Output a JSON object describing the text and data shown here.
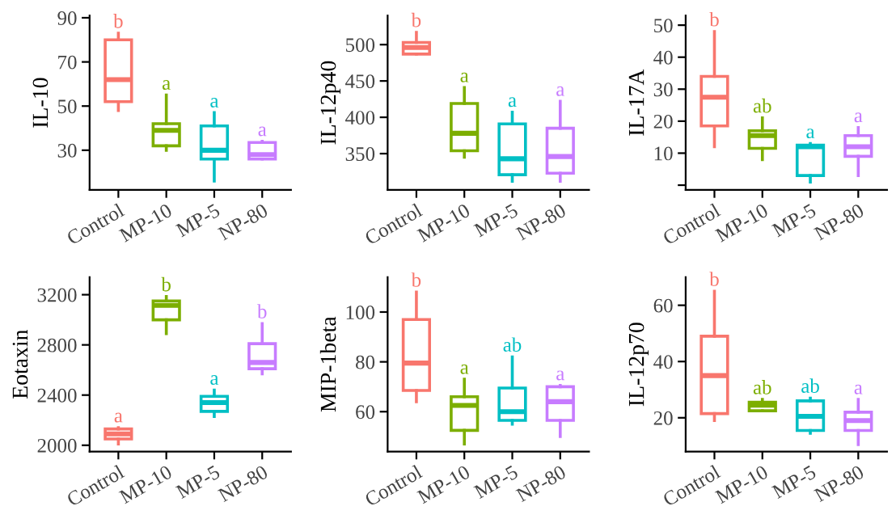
{
  "chart_data": [
    {
      "type": "box",
      "ylabel": "IL-10",
      "categories": [
        "Control",
        "MP-10",
        "MP-5",
        "NP-80"
      ],
      "colors": [
        "#f8766d",
        "#7cae00",
        "#00bfc4",
        "#c77cff"
      ],
      "ylim": [
        12,
        91
      ],
      "yticks": [
        30,
        50,
        70,
        90
      ],
      "grid": false,
      "legend": false,
      "boxes": [
        {
          "low": 48,
          "q1": 52,
          "median": 62,
          "q3": 80,
          "high": 83
        },
        {
          "low": 30,
          "q1": 32,
          "median": 39,
          "q3": 42,
          "high": 55
        },
        {
          "low": 16,
          "q1": 26,
          "median": 30,
          "q3": 41,
          "high": 47
        },
        {
          "low": 26,
          "q1": 26,
          "median": 28,
          "q3": 33.5,
          "high": 34
        }
      ],
      "annotations": [
        {
          "text": "b",
          "x": "Control",
          "y": 83
        },
        {
          "text": "a",
          "x": "MP-10",
          "y": 55
        },
        {
          "text": "a",
          "x": "MP-5",
          "y": 47
        },
        {
          "text": "a",
          "x": "NP-80",
          "y": 34
        }
      ]
    },
    {
      "type": "box",
      "ylabel": "IL-12p40",
      "categories": [
        "Control",
        "MP-10",
        "MP-5",
        "NP-80"
      ],
      "colors": [
        "#f8766d",
        "#7cae00",
        "#00bfc4",
        "#c77cff"
      ],
      "ylim": [
        300,
        540
      ],
      "yticks": [
        350,
        400,
        450,
        500
      ],
      "grid": false,
      "legend": false,
      "boxes": [
        {
          "low": 487,
          "q1": 487,
          "median": 496,
          "q3": 503,
          "high": 517
        },
        {
          "low": 345,
          "q1": 354,
          "median": 378,
          "q3": 419,
          "high": 441
        },
        {
          "low": 312,
          "q1": 321,
          "median": 343,
          "q3": 391,
          "high": 407
        },
        {
          "low": 312,
          "q1": 323,
          "median": 346,
          "q3": 385,
          "high": 422
        }
      ],
      "annotations": [
        {
          "text": "b",
          "x": "Control",
          "y": 517
        },
        {
          "text": "a",
          "x": "MP-10",
          "y": 441
        },
        {
          "text": "a",
          "x": "MP-5",
          "y": 407
        },
        {
          "text": "a",
          "x": "NP-80",
          "y": 422
        }
      ]
    },
    {
      "type": "box",
      "ylabel": "IL-17A",
      "categories": [
        "Control",
        "MP-10",
        "MP-5",
        "NP-80"
      ],
      "colors": [
        "#f8766d",
        "#7cae00",
        "#00bfc4",
        "#c77cff"
      ],
      "ylim": [
        -1.5,
        53
      ],
      "yticks": [
        {
          "value": 0,
          "label": null
        },
        10,
        20,
        30,
        40,
        50
      ],
      "grid": false,
      "legend": false,
      "boxes": [
        {
          "low": 12,
          "q1": 18.5,
          "median": 27.5,
          "q3": 34,
          "high": 48
        },
        {
          "low": 8,
          "q1": 11.5,
          "median": 15.5,
          "q3": 17,
          "high": 21
        },
        {
          "low": 1,
          "q1": 3,
          "median": 12,
          "q3": 12.5,
          "high": 13
        },
        {
          "low": 3,
          "q1": 9,
          "median": 12,
          "q3": 15.5,
          "high": 18
        }
      ],
      "annotations": [
        {
          "text": "b",
          "x": "Control",
          "y": 48
        },
        {
          "text": "ab",
          "x": "MP-10",
          "y": 21
        },
        {
          "text": "a",
          "x": "MP-5",
          "y": 13
        },
        {
          "text": "a",
          "x": "NP-80",
          "y": 18
        }
      ]
    },
    {
      "type": "box",
      "ylabel": "Eotaxin",
      "categories": [
        "Control",
        "MP-10",
        "MP-5",
        "NP-80"
      ],
      "colors": [
        "#f8766d",
        "#7cae00",
        "#00bfc4",
        "#c77cff"
      ],
      "ylim": [
        1950,
        3340
      ],
      "yticks": [
        2000,
        2400,
        2800,
        3200
      ],
      "grid": false,
      "legend": false,
      "boxes": [
        {
          "low": 2010,
          "q1": 2050,
          "median": 2090,
          "q3": 2130,
          "high": 2140
        },
        {
          "low": 2890,
          "q1": 3000,
          "median": 3115,
          "q3": 3150,
          "high": 3185
        },
        {
          "low": 2230,
          "q1": 2270,
          "median": 2340,
          "q3": 2390,
          "high": 2440
        },
        {
          "low": 2570,
          "q1": 2610,
          "median": 2660,
          "q3": 2810,
          "high": 2970
        }
      ],
      "annotations": [
        {
          "text": "a",
          "x": "Control",
          "y": 2140
        },
        {
          "text": "b",
          "x": "MP-10",
          "y": 3185
        },
        {
          "text": "a",
          "x": "MP-5",
          "y": 2440
        },
        {
          "text": "b",
          "x": "NP-80",
          "y": 2970
        }
      ]
    },
    {
      "type": "box",
      "ylabel": "MIP-1beta",
      "categories": [
        "Control",
        "MP-10",
        "MP-5",
        "NP-80"
      ],
      "colors": [
        "#f8766d",
        "#7cae00",
        "#00bfc4",
        "#c77cff"
      ],
      "ylim": [
        44,
        114
      ],
      "yticks": [
        60,
        80,
        100
      ],
      "grid": false,
      "legend": false,
      "boxes": [
        {
          "low": 64,
          "q1": 68.5,
          "median": 79.5,
          "q3": 97,
          "high": 108
        },
        {
          "low": 47,
          "q1": 52.5,
          "median": 62.5,
          "q3": 66,
          "high": 73
        },
        {
          "low": 55,
          "q1": 56.5,
          "median": 60,
          "q3": 69.5,
          "high": 82
        },
        {
          "low": 50,
          "q1": 56.5,
          "median": 64,
          "q3": 70,
          "high": 70.5
        }
      ],
      "annotations": [
        {
          "text": "b",
          "x": "Control",
          "y": 108
        },
        {
          "text": "a",
          "x": "MP-10",
          "y": 73
        },
        {
          "text": "ab",
          "x": "MP-5",
          "y": 82
        },
        {
          "text": "a",
          "x": "NP-80",
          "y": 70.5
        }
      ]
    },
    {
      "type": "box",
      "ylabel": "IL-12p70",
      "categories": [
        "Control",
        "MP-10",
        "MP-5",
        "NP-80"
      ],
      "colors": [
        "#f8766d",
        "#7cae00",
        "#00bfc4",
        "#c77cff"
      ],
      "ylim": [
        8,
        70
      ],
      "yticks": [
        20,
        40,
        60
      ],
      "grid": false,
      "legend": false,
      "boxes": [
        {
          "low": 19,
          "q1": 21.5,
          "median": 35,
          "q3": 49,
          "high": 65
        },
        {
          "low": 22.5,
          "q1": 22.5,
          "median": 24.5,
          "q3": 25.5,
          "high": 26.5
        },
        {
          "low": 14.5,
          "q1": 15.5,
          "median": 20.5,
          "q3": 26,
          "high": 27
        },
        {
          "low": 10.5,
          "q1": 15.5,
          "median": 19,
          "q3": 22,
          "high": 26.5
        }
      ],
      "annotations": [
        {
          "text": "b",
          "x": "Control",
          "y": 65
        },
        {
          "text": "ab",
          "x": "MP-10",
          "y": 26.5
        },
        {
          "text": "ab",
          "x": "MP-5",
          "y": 27
        },
        {
          "text": "a",
          "x": "NP-80",
          "y": 26.5
        }
      ]
    }
  ]
}
